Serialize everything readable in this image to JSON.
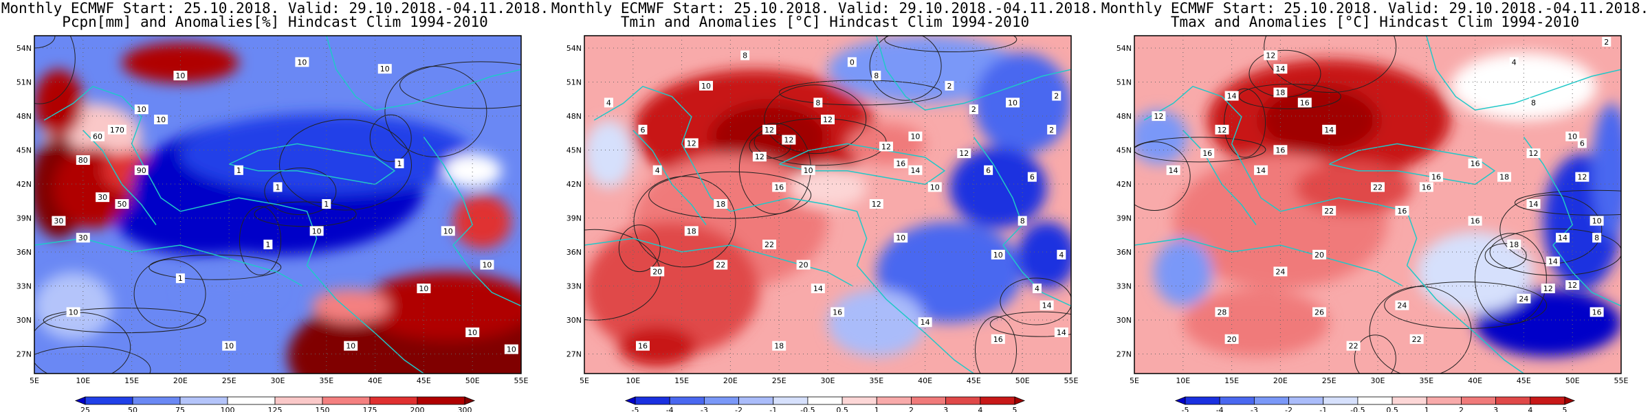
{
  "panels": [
    {
      "title_line1": "Monthly ECMWF Start: 25.10.2018. Valid: 29.10.2018.-04.11.2018.",
      "title_line2": "Pcpn[mm] and Anomalies[%] Hindcast Clim 1994-2010",
      "colorbar": {
        "labels": [
          "25",
          "50",
          "75",
          "100",
          "125",
          "150",
          "175",
          "200",
          "300"
        ],
        "colors": [
          "#0000c8",
          "#2040e8",
          "#6a88f4",
          "#b4c4fa",
          "#ffffff",
          "#fac8c8",
          "#f48080",
          "#e03030",
          "#b00000",
          "#800000"
        ]
      },
      "contour_labels": [
        "10",
        "10",
        "10",
        "1",
        "1",
        "1",
        "1",
        "1",
        "1",
        "10",
        "10",
        "10",
        "10",
        "10",
        "30",
        "30",
        "30",
        "50",
        "90",
        "60",
        "170",
        "80",
        "10",
        "10",
        "10",
        "10",
        "10",
        "10"
      ]
    },
    {
      "title_line1": "Monthly ECMWF Start: 25.10.2018. Valid: 29.10.2018.-04.11.2018.",
      "title_line2": "Tmin and Anomalies [°C] Hindcast Clim 1994-2010",
      "colorbar": {
        "labels": [
          "-5",
          "-4",
          "-3",
          "-2",
          "-1",
          "-0.5",
          "0.5",
          "1",
          "2",
          "3",
          "4",
          "5"
        ],
        "colors": [
          "#0000c8",
          "#1a30e0",
          "#4a68f0",
          "#7a98f8",
          "#aabcfa",
          "#d6e0fc",
          "#ffffff",
          "#fcd6d6",
          "#f8aaaa",
          "#f07a7a",
          "#e04848",
          "#c81818",
          "#a00000"
        ]
      },
      "contour_labels": [
        "8",
        "8",
        "10",
        "12",
        "12",
        "8",
        "4",
        "2",
        "2",
        "6",
        "12",
        "12",
        "10",
        "10",
        "12",
        "12",
        "16",
        "16",
        "18",
        "18",
        "22",
        "22",
        "20",
        "20",
        "16",
        "18",
        "16",
        "14",
        "14",
        "10",
        "10",
        "8",
        "4",
        "4",
        "6",
        "6",
        "10",
        "12",
        "10",
        "12",
        "14",
        "14",
        "16",
        "14",
        "4",
        "0",
        "2",
        "2"
      ]
    },
    {
      "title_line1": "Monthly ECMWF Start: 25.10.2018. Valid: 29.10.2018.-04.11.2018.",
      "title_line2": "Tmax and Anomalies [°C] Hindcast Clim 1994-2010",
      "colorbar": {
        "labels": [
          "-5",
          "-4",
          "-3",
          "-2",
          "-1",
          "-0.5",
          "0.5",
          "1",
          "2",
          "3",
          "4",
          "5"
        ],
        "colors": [
          "#0000c8",
          "#1a30e0",
          "#4a68f0",
          "#7a98f8",
          "#aabcfa",
          "#d6e0fc",
          "#ffffff",
          "#fcd6d6",
          "#f8aaaa",
          "#f07a7a",
          "#e04848",
          "#c81818",
          "#a00000"
        ]
      },
      "contour_labels": [
        "12",
        "14",
        "14",
        "16",
        "18",
        "14",
        "16",
        "16",
        "14",
        "12",
        "12",
        "14",
        "16",
        "16",
        "18",
        "16",
        "22",
        "22",
        "20",
        "24",
        "26",
        "28",
        "24",
        "22",
        "16",
        "16",
        "14",
        "14",
        "12",
        "12",
        "10",
        "10",
        "8",
        "6",
        "4",
        "2",
        "20",
        "22",
        "18",
        "14",
        "12",
        "16",
        "24",
        "8",
        "12"
      ]
    }
  ],
  "map_axes": {
    "lat_labels": [
      "54N",
      "51N",
      "48N",
      "45N",
      "42N",
      "39N",
      "36N",
      "33N",
      "30N",
      "27N"
    ],
    "lon_labels": [
      "5E",
      "10E",
      "15E",
      "20E",
      "25E",
      "30E",
      "35E",
      "40E",
      "45E",
      "50E",
      "55E"
    ]
  }
}
